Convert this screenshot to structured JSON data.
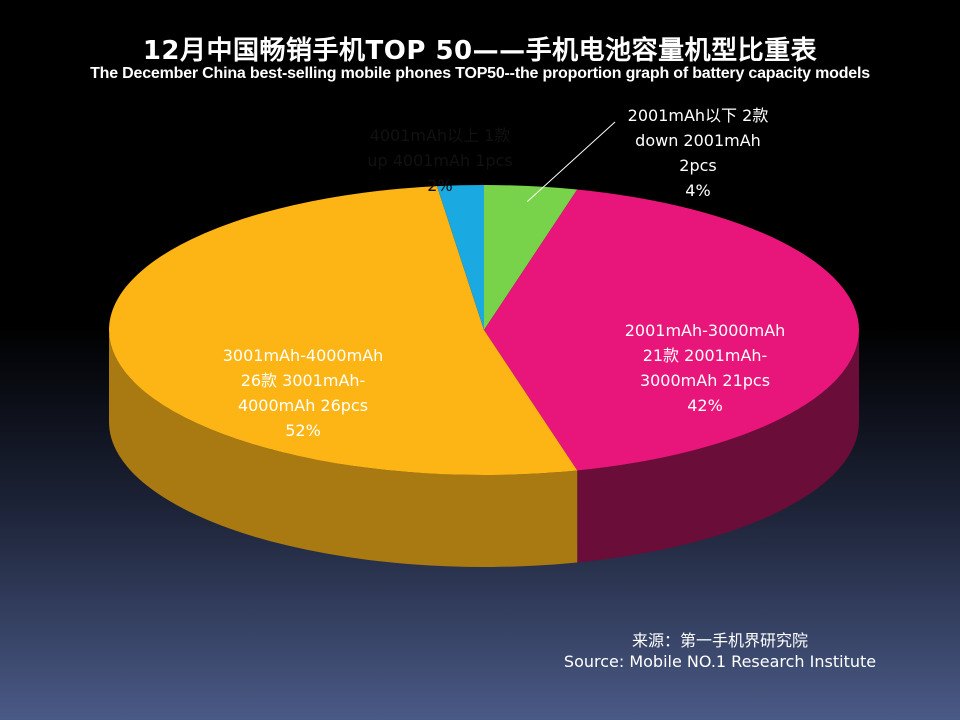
{
  "chart_data": {
    "type": "pie",
    "title": "12月中国畅销手机TOP 50——手机电池容量机型比重表",
    "subtitle": "The  December China best-selling mobile phones TOP50--the proportion graph of battery capacity models",
    "slices": [
      {
        "label_lines": [
          "2001mAh以下 2款",
          "down 2001mAh",
          "2pcs",
          "4%"
        ],
        "count": 2,
        "percent": 4,
        "color": "#79d34a",
        "side_color": "#3f7a22"
      },
      {
        "label_lines": [
          "2001mAh-3000mAh",
          "21款 2001mAh-",
          "3000mAh 21pcs",
          "42%"
        ],
        "count": 21,
        "percent": 42,
        "color": "#e8157a",
        "side_color": "#6a0d38"
      },
      {
        "label_lines": [
          "3001mAh-4000mAh",
          "26款 3001mAh-",
          "4000mAh 26pcs",
          "52%"
        ],
        "count": 26,
        "percent": 52,
        "color": "#fcb514",
        "side_color": "#a97a12"
      },
      {
        "label_lines": [
          "4001mAh以上 1款",
          "up 4001mAh 1pcs",
          "2%"
        ],
        "count": 1,
        "percent": 2,
        "color": "#1aa9e0",
        "side_color": "#0d5d80"
      }
    ],
    "source_lines": [
      "来源：第一手机界研究院",
      "Source: Mobile NO.1 Research Institute"
    ]
  }
}
